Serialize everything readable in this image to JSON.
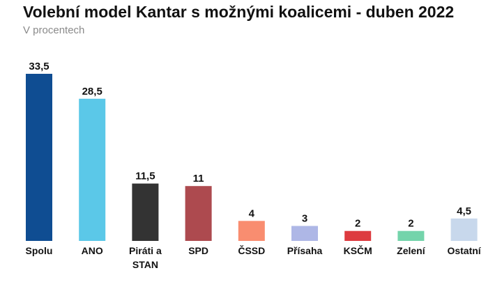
{
  "header": {
    "title": "Volební model Kantar s možnými koalicemi - duben 2022",
    "subtitle": "V procentech"
  },
  "chart_data": {
    "type": "bar",
    "categories": [
      "Spolu",
      "ANO",
      "Piráti a STAN",
      "SPD",
      "ČSSD",
      "Přísaha",
      "KSČM",
      "Zelení",
      "Ostatní"
    ],
    "category_lines": [
      [
        "Spolu"
      ],
      [
        "ANO"
      ],
      [
        "Piráti a",
        "STAN"
      ],
      [
        "SPD"
      ],
      [
        "ČSSD"
      ],
      [
        "Přísaha"
      ],
      [
        "KSČM"
      ],
      [
        "Zelení"
      ],
      [
        "Ostatní"
      ]
    ],
    "values": [
      33.5,
      28.5,
      11.5,
      11,
      4,
      3,
      2,
      2,
      4.5
    ],
    "value_labels": [
      "33,5",
      "28,5",
      "11,5",
      "11",
      "4",
      "3",
      "2",
      "2",
      "4,5"
    ],
    "colors": [
      "#0f4d92",
      "#5bc8e8",
      "#333333",
      "#ad4a4f",
      "#f98d70",
      "#aeb7e6",
      "#dd3b3f",
      "#74d4ab",
      "#c8d8ec"
    ],
    "title": "Volební model Kantar s možnými koalicemi - duben 2022",
    "subtitle": "V procentech",
    "xlabel": "",
    "ylabel": "",
    "ylim": [
      0,
      33.5
    ],
    "grid": false,
    "legend": "none"
  }
}
